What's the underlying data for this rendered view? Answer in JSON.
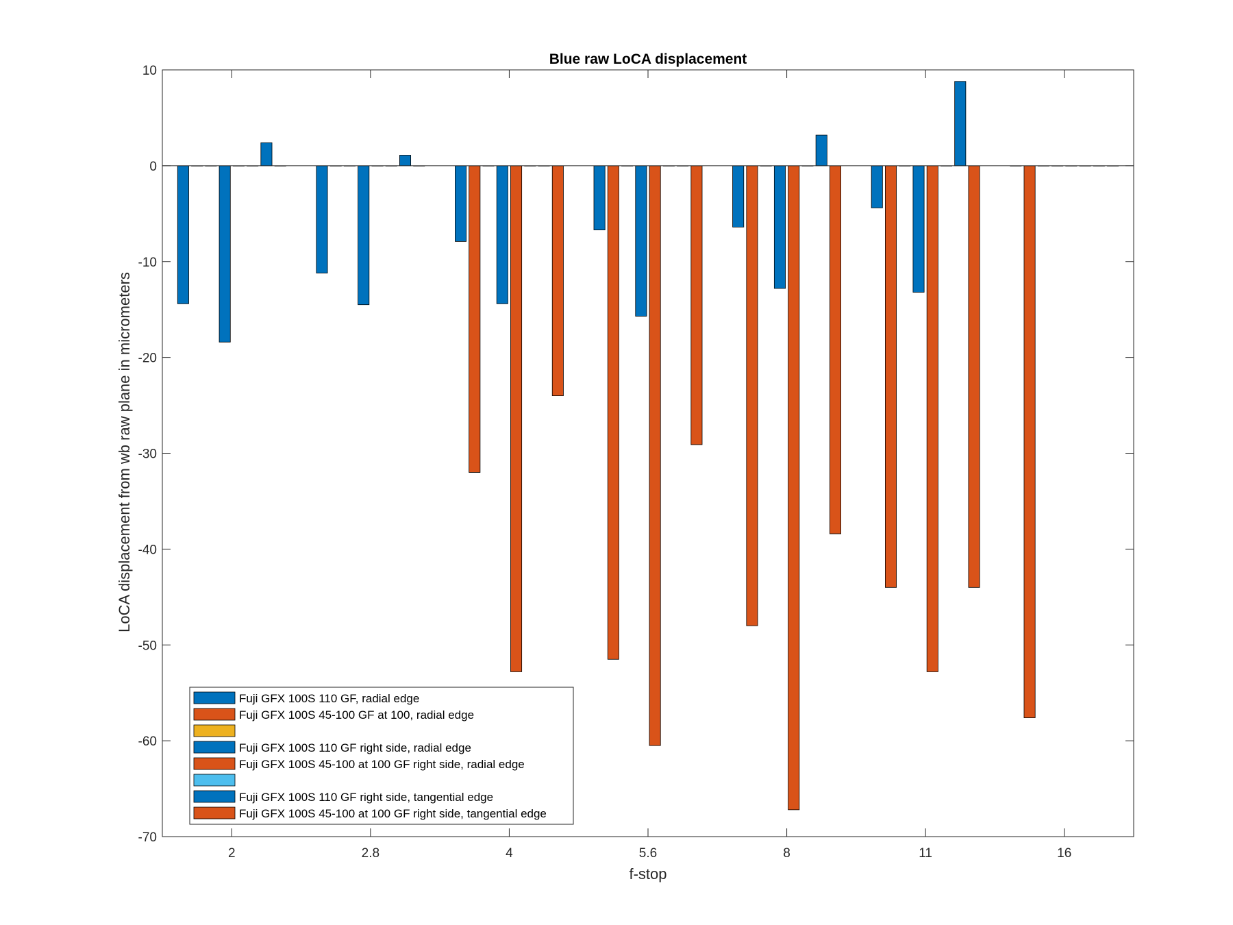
{
  "chart_data": {
    "type": "bar",
    "title": "Blue raw  LoCA displacement",
    "xlabel": "f-stop",
    "ylabel": "LoCA displacement from wb raw plane in micrometers",
    "categories": [
      "2",
      "2.8",
      "4",
      "5.6",
      "8",
      "11",
      "16"
    ],
    "ylim": [
      -70,
      10
    ],
    "yticks": [
      10,
      0,
      -10,
      -20,
      -30,
      -40,
      -50,
      -60,
      -70
    ],
    "grid": false,
    "legend_position": "bottom-left",
    "series": [
      {
        "name": "Fuji GFX 100S 110 GF, radial edge",
        "color": "#0072BD",
        "values": [
          -14.4,
          -11.2,
          -7.9,
          -6.7,
          -6.4,
          -4.4,
          0
        ]
      },
      {
        "name": "Fuji GFX 100S 45-100 GF at 100, radial edge",
        "color": "#D95319",
        "values": [
          0,
          0,
          -32,
          -51.5,
          -48,
          -44,
          -57.6
        ]
      },
      {
        "name": "",
        "color": "#EDB120",
        "values": [
          0,
          0,
          0,
          0,
          0,
          0,
          0
        ]
      },
      {
        "name": "Fuji GFX 100S 110 GF right side, radial edge",
        "color": "#0072BD",
        "values": [
          -18.4,
          -14.5,
          -14.4,
          -15.7,
          -12.8,
          -13.2,
          0
        ]
      },
      {
        "name": "Fuji GFX 100S 45-100 at 100 GF right side, radial edge",
        "color": "#D95319",
        "values": [
          0,
          0,
          -52.8,
          -60.5,
          -67.2,
          -52.8,
          0
        ]
      },
      {
        "name": "",
        "color": "#4DBEEE",
        "values": [
          0,
          0,
          0,
          0,
          0,
          0,
          0
        ]
      },
      {
        "name": "Fuji GFX 100S 110 GF right side, tangential edge",
        "color": "#0072BD",
        "values": [
          2.4,
          1.1,
          0,
          0,
          3.2,
          8.8,
          0
        ]
      },
      {
        "name": "Fuji GFX 100S 45-100 at 100 GF right side, tangential edge",
        "color": "#D95319",
        "values": [
          0,
          0,
          -24,
          -29.1,
          -38.4,
          -44,
          0
        ]
      }
    ]
  }
}
